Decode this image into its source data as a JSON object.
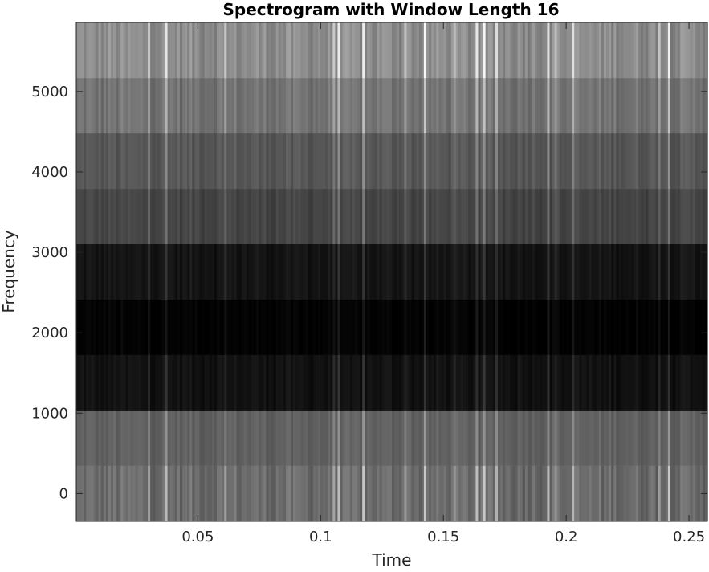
{
  "chart_data": {
    "type": "heatmap",
    "title": "Spectrogram with Window Length 16",
    "xlabel": "Time",
    "ylabel": "Frequency",
    "colormap": "gray",
    "xlim": [
      0.0005,
      0.2575
    ],
    "ylim": [
      -345,
      5857
    ],
    "x_ticks": [
      0.05,
      0.1,
      0.15,
      0.2,
      0.25
    ],
    "x_tick_labels": [
      "0.05",
      "0.1",
      "0.15",
      "0.2",
      "0.25"
    ],
    "y_ticks": [
      0,
      1000,
      2000,
      3000,
      4000,
      5000
    ],
    "y_tick_labels": [
      "0",
      "1000",
      "2000",
      "3000",
      "4000",
      "5000"
    ],
    "frequency_bins": [
      0,
      689,
      1378,
      2067,
      2756,
      3445,
      4134,
      4823,
      5512
    ],
    "bin_intensity": [
      0.42,
      0.38,
      0.07,
      0.01,
      0.08,
      0.27,
      0.34,
      0.45,
      0.55
    ],
    "frame_count": 256,
    "frame_start": 0.001,
    "frame_end": 0.257,
    "grid": false
  }
}
